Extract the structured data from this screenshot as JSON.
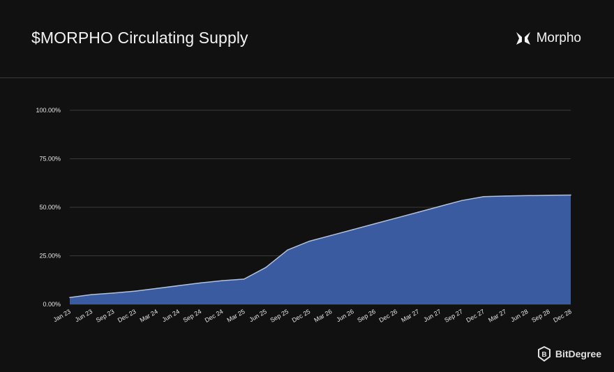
{
  "header": {
    "title": "$MORPHO Circulating Supply",
    "brand": "Morpho"
  },
  "watermark": {
    "name": "BitDegree"
  },
  "colors": {
    "background": "#111111",
    "area_fill": "#3a5ba0",
    "line": "#a9c1ef",
    "grid": "#3a3a3a",
    "text": "#e6e6e6"
  },
  "chart_data": {
    "type": "area",
    "title": "$MORPHO Circulating Supply",
    "xlabel": "",
    "ylabel": "",
    "ylim": [
      0,
      100
    ],
    "y_ticks": [
      "0.00%",
      "25.00%",
      "50.00%",
      "75.00%",
      "100.00%"
    ],
    "grid": true,
    "categories": [
      "Jan 23",
      "Jun 23",
      "Sep 23",
      "Dec 23",
      "Mar 24",
      "Jun 24",
      "Sep 24",
      "Dec 24",
      "Mar 25",
      "Jun 25",
      "Sep 25",
      "Dec 25",
      "Mar 26",
      "Jun 26",
      "Sep 26",
      "Dec 26",
      "Mar 27",
      "Jun 27",
      "Sep 27",
      "Dec 27",
      "Mar 27",
      "Jun 28",
      "Sep 28",
      "Dec 28"
    ],
    "values": [
      3.5,
      5.0,
      5.8,
      6.8,
      8.2,
      9.6,
      11.0,
      12.2,
      13.0,
      19.0,
      28.0,
      32.5,
      35.5,
      38.5,
      41.5,
      44.5,
      47.5,
      50.5,
      53.5,
      55.5,
      55.8,
      56.0,
      56.2,
      56.3
    ]
  }
}
